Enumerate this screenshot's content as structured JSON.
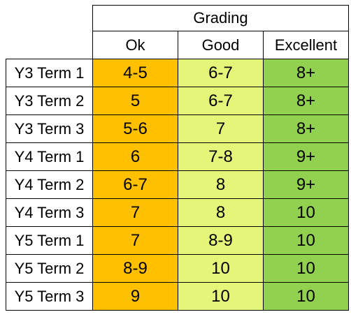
{
  "table": {
    "group_header": "Grading",
    "columns": [
      "Ok",
      "Good",
      "Excellent"
    ],
    "rows": [
      {
        "label": "Y3 Term 1",
        "ok": "4-5",
        "good": "6-7",
        "excellent": "8+"
      },
      {
        "label": "Y3 Term 2",
        "ok": "5",
        "good": "6-7",
        "excellent": "8+"
      },
      {
        "label": "Y3 Term 3",
        "ok": "5-6",
        "good": "7",
        "excellent": "8+"
      },
      {
        "label": "Y4 Term 1",
        "ok": "6",
        "good": "7-8",
        "excellent": "9+"
      },
      {
        "label": "Y4 Term 2",
        "ok": "6-7",
        "good": "8",
        "excellent": "9+"
      },
      {
        "label": "Y4 Term 3",
        "ok": "7",
        "good": "8",
        "excellent": "10"
      },
      {
        "label": "Y5 Term 1",
        "ok": "7",
        "good": "8-9",
        "excellent": "10"
      },
      {
        "label": "Y5 Term 2",
        "ok": "8-9",
        "good": "10",
        "excellent": "10"
      },
      {
        "label": "Y5 Term 3",
        "ok": "9",
        "good": "10",
        "excellent": "10"
      }
    ],
    "colors": {
      "ok": "#ffc000",
      "good": "#e4f57a",
      "excellent": "#92d050"
    }
  }
}
